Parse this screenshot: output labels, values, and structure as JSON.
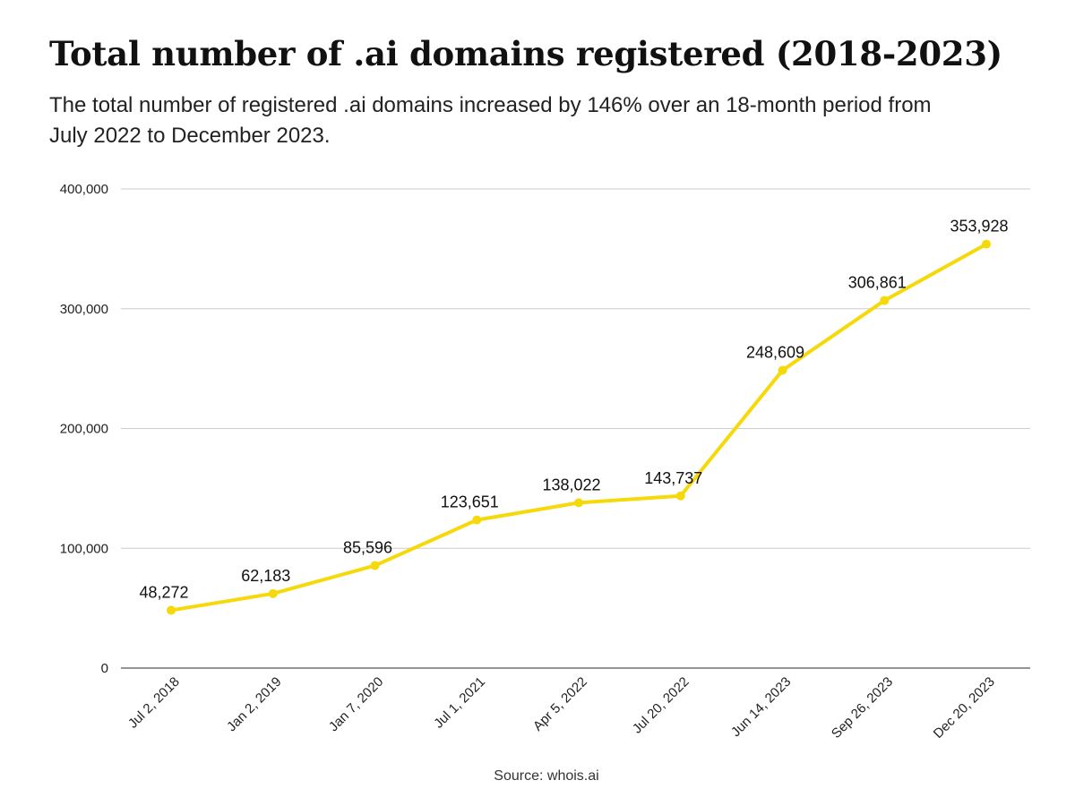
{
  "header": {
    "title": "Total number of .ai domains registered (2018-2023)",
    "subtitle": "The total number of registered .ai domains increased by 146% over an 18-month period from July 2022 to December 2023."
  },
  "footer": {
    "source": "Source: whois.ai"
  },
  "chart_data": {
    "type": "line",
    "title": "Total number of .ai domains registered (2018-2023)",
    "xlabel": "",
    "ylabel": "",
    "ylim": [
      0,
      400000
    ],
    "yticks": [
      0,
      100000,
      200000,
      300000,
      400000
    ],
    "ytick_labels": [
      "0",
      "100,000",
      "200,000",
      "300,000",
      "400,000"
    ],
    "grid": true,
    "line_color": "#F5D90A",
    "categories": [
      "Jul 2, 2018",
      "Jan 2, 2019",
      "Jan 7, 2020",
      "Jul 1, 2021",
      "Apr 5, 2022",
      "Jul 20, 2022",
      "Jun 14, 2023",
      "Sep 26, 2023",
      "Dec 20, 2023"
    ],
    "values": [
      48272,
      62183,
      85596,
      123651,
      138022,
      143737,
      248609,
      306861,
      353928
    ],
    "data_labels": [
      "48,272",
      "62,183",
      "85,596",
      "123,651",
      "138,022",
      "143,737",
      "248,609",
      "306,861",
      "353,928"
    ]
  }
}
